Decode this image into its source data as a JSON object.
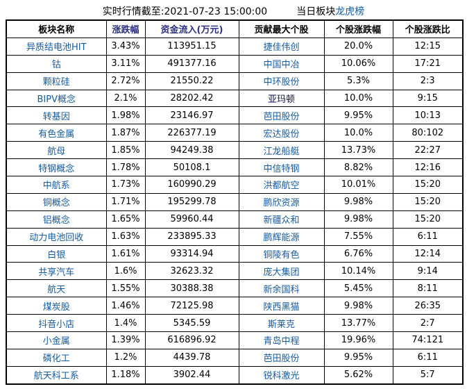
{
  "title": {
    "timestamp_label": "实时行情截至:2021-07-23 15:00:00",
    "board_label": "当日板块",
    "board_link": "龙虎榜"
  },
  "colors": {
    "name_blue": "#155A9E",
    "header_blue": "#2A2E7F",
    "dark_name": "#10104A",
    "border": "#000000",
    "text_black": "#000000",
    "background": "#FFFFFF"
  },
  "table": {
    "headers": [
      "板块名称",
      "涨跌幅",
      "资金流入(万元)",
      "贡献最大个股",
      "个股涨跌幅",
      "个股涨跌比"
    ],
    "rows": [
      {
        "sector": "异质结电池HIT",
        "change": "3.43%",
        "inflow": "113951.15",
        "stock": "捷佳伟创",
        "stock_change": "20.0%",
        "ratio": "12:15"
      },
      {
        "sector": "钴",
        "change": "3.11%",
        "inflow": "491377.16",
        "stock": "中国中冶",
        "stock_change": "10.06%",
        "ratio": "17:21"
      },
      {
        "sector": "颗粒硅",
        "change": "2.72%",
        "inflow": "21550.22",
        "stock": "中环股份",
        "stock_change": "5.3%",
        "ratio": "2:3"
      },
      {
        "sector": "BIPV概念",
        "change": "2.1%",
        "inflow": "28202.42",
        "stock": "亚玛顿",
        "stock_change": "10.0%",
        "ratio": "9:15",
        "stock_dark": true
      },
      {
        "sector": "转基因",
        "change": "1.98%",
        "inflow": "23146.97",
        "stock": "芭田股份",
        "stock_change": "9.95%",
        "ratio": "10:13"
      },
      {
        "sector": "有色金属",
        "change": "1.87%",
        "inflow": "226377.19",
        "stock": "宏达股份",
        "stock_change": "10.0%",
        "ratio": "80:102"
      },
      {
        "sector": "航母",
        "change": "1.85%",
        "inflow": "94249.38",
        "stock": "江龙船艇",
        "stock_change": "13.73%",
        "ratio": "22:27"
      },
      {
        "sector": "特钢概念",
        "change": "1.78%",
        "inflow": "50108.1",
        "stock": "中信特钢",
        "stock_change": "8.82%",
        "ratio": "12:16"
      },
      {
        "sector": "中航系",
        "change": "1.73%",
        "inflow": "160990.29",
        "stock": "洪都航空",
        "stock_change": "10.01%",
        "ratio": "15:20"
      },
      {
        "sector": "铜概念",
        "change": "1.71%",
        "inflow": "195299.78",
        "stock": "鹏欣资源",
        "stock_change": "9.98%",
        "ratio": "15:20"
      },
      {
        "sector": "铝概念",
        "change": "1.65%",
        "inflow": "59960.44",
        "stock": "新疆众和",
        "stock_change": "9.98%",
        "ratio": "15:20"
      },
      {
        "sector": "动力电池回收",
        "change": "1.63%",
        "inflow": "233895.33",
        "stock": "鹏辉能源",
        "stock_change": "7.55%",
        "ratio": "6:11"
      },
      {
        "sector": "白银",
        "change": "1.61%",
        "inflow": "93314.94",
        "stock": "铜陵有色",
        "stock_change": "6.76%",
        "ratio": "12:14"
      },
      {
        "sector": "共享汽车",
        "change": "1.6%",
        "inflow": "32623.32",
        "stock": "庞大集团",
        "stock_change": "10.14%",
        "ratio": "9:14"
      },
      {
        "sector": "航天",
        "change": "1.55%",
        "inflow": "30388.38",
        "stock": "新余国科",
        "stock_change": "5.45%",
        "ratio": "8:11"
      },
      {
        "sector": "煤炭股",
        "change": "1.46%",
        "inflow": "72125.98",
        "stock": "陕西黑猫",
        "stock_change": "9.98%",
        "ratio": "26:35"
      },
      {
        "sector": "抖音小店",
        "change": "1.4%",
        "inflow": "5345.59",
        "stock": "斯莱克",
        "stock_change": "13.77%",
        "ratio": "2:7"
      },
      {
        "sector": "小金属",
        "change": "1.39%",
        "inflow": "616896.92",
        "stock": "青岛中程",
        "stock_change": "19.96%",
        "ratio": "74:121"
      },
      {
        "sector": "磷化工",
        "change": "1.2%",
        "inflow": "4439.78",
        "stock": "芭田股份",
        "stock_change": "9.95%",
        "ratio": "6:11"
      },
      {
        "sector": "航天科工系",
        "change": "1.18%",
        "inflow": "3902.44",
        "stock": "锐科激光",
        "stock_change": "5.62%",
        "ratio": "5:7"
      }
    ]
  }
}
